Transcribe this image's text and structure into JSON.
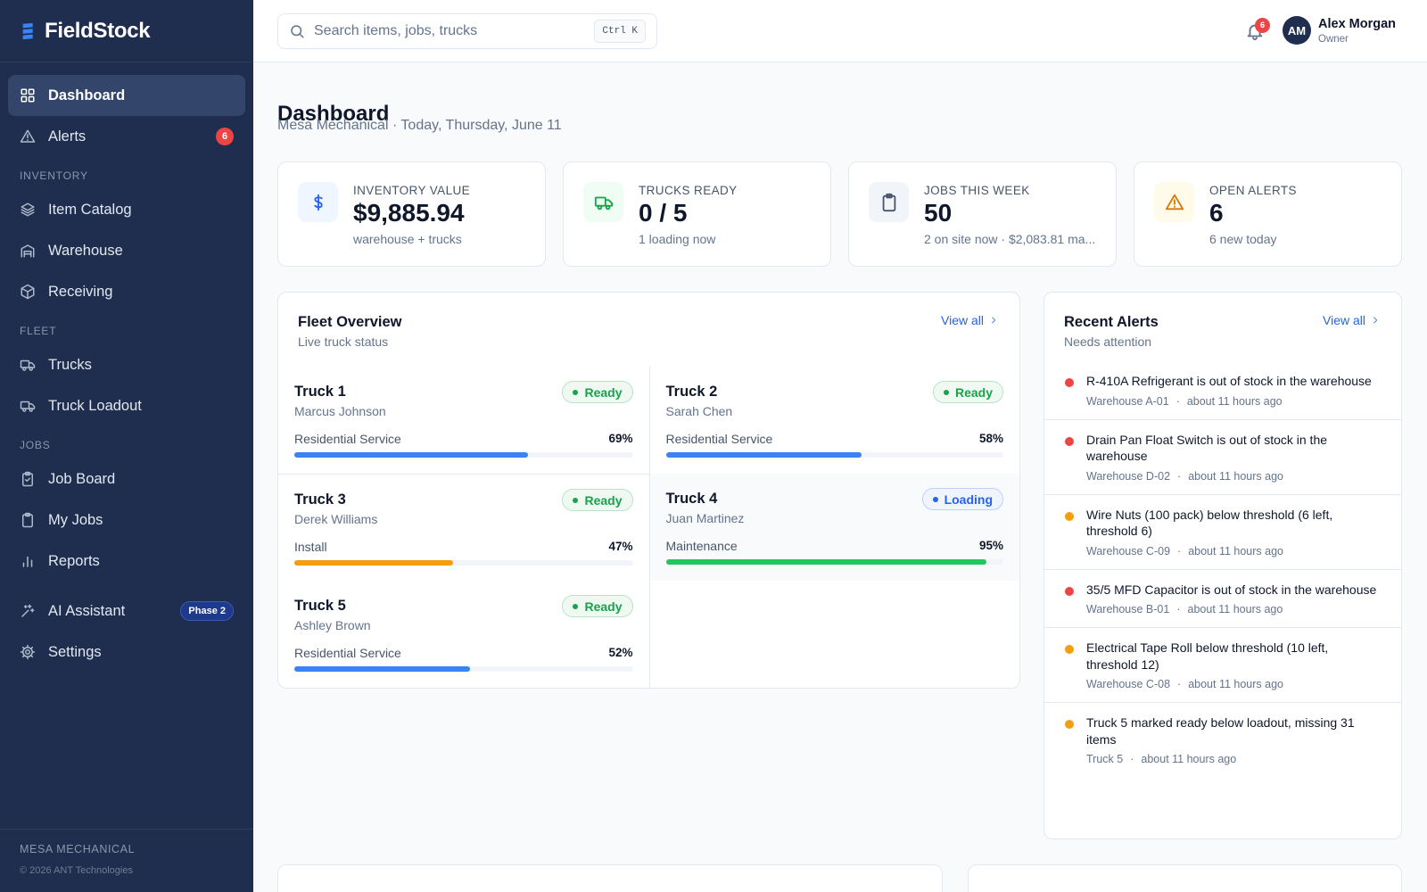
{
  "sidebar": {
    "brand": "FieldStock",
    "groups": [
      {
        "items": [
          {
            "label": "Dashboard",
            "active": true
          },
          {
            "label": "Alerts",
            "badge": 6
          }
        ]
      },
      {
        "heading": "INVENTORY",
        "items": [
          {
            "label": "Item Catalog"
          },
          {
            "label": "Warehouse"
          },
          {
            "label": "Receiving"
          }
        ]
      },
      {
        "heading": "FLEET",
        "items": [
          {
            "label": "Trucks"
          },
          {
            "label": "Truck Loadout"
          }
        ]
      },
      {
        "heading": "JOBS",
        "items": [
          {
            "label": "Job Board"
          },
          {
            "label": "My Jobs"
          },
          {
            "label": "Reports"
          }
        ]
      },
      {
        "items": [
          {
            "label": "AI Assistant",
            "badge": "Phase 2"
          },
          {
            "label": "Settings"
          }
        ]
      }
    ],
    "footer": {
      "org": "MESA MECHANICAL",
      "copyright": "© 2026 ANT Technologies"
    }
  },
  "topbar": {
    "search_placeholder": "Search items, jobs, trucks",
    "shortcut": "Ctrl K",
    "notifications": 6,
    "user": {
      "initials": "AM",
      "name": "Alex Morgan",
      "role": "Owner"
    }
  },
  "page": {
    "title": "Dashboard",
    "subtitle": "Mesa Mechanical · Today, Thursday, June 11"
  },
  "stats": [
    {
      "label": "INVENTORY VALUE",
      "value": "$9,885.94",
      "note": "warehouse + trucks"
    },
    {
      "label": "TRUCKS READY",
      "value": "0 / 5",
      "note": "1 loading now"
    },
    {
      "label": "JOBS THIS WEEK",
      "value": 50,
      "note": "2 on site now · $2,083.81 ma..."
    },
    {
      "label": "OPEN ALERTS",
      "value": 6,
      "note": "6 new today"
    }
  ],
  "fleet": {
    "title": "Fleet Overview",
    "subtitle": "Live truck status",
    "view_all": "View all",
    "trucks": [
      {
        "name": "Truck 1",
        "driver": "Marcus Johnson",
        "status": "Ready",
        "status_color": "#16a34a",
        "job": "Residential Service",
        "progress": {
          "value": 69,
          "label": "69%"
        },
        "bar_color": "#3b82f6"
      },
      {
        "name": "Truck 2",
        "driver": "Sarah Chen",
        "status": "Ready",
        "status_color": "#16a34a",
        "job": "Residential Service",
        "progress": {
          "value": 58,
          "label": "58%"
        },
        "bar_color": "#3b82f6"
      },
      {
        "name": "Truck 3",
        "driver": "Derek Williams",
        "status": "Ready",
        "status_color": "#16a34a",
        "job": "Install",
        "progress": {
          "value": 47,
          "label": "47%"
        },
        "bar_color": "#f59e0b"
      },
      {
        "name": "Truck 4",
        "driver": "Juan Martinez",
        "status": "Loading",
        "status_color": "#2563eb",
        "job": "Maintenance",
        "progress": {
          "value": 95,
          "label": "95%"
        },
        "bar_color": "#22c55e"
      },
      {
        "name": "Truck 5",
        "driver": "Ashley Brown",
        "status": "Ready",
        "status_color": "#16a34a",
        "job": "Residential Service",
        "progress": {
          "value": 52,
          "label": "52%"
        },
        "bar_color": "#3b82f6"
      }
    ]
  },
  "alerts": {
    "title": "Recent Alerts",
    "subtitle": "Needs attention",
    "view_all": "View all",
    "items": [
      {
        "text": "R-410A Refrigerant is out of stock in the warehouse",
        "location": "Warehouse A-01",
        "time": "about 11 hours ago",
        "color": "#ef4444"
      },
      {
        "text": "Drain Pan Float Switch is out of stock in the warehouse",
        "location": "Warehouse D-02",
        "time": "about 11 hours ago",
        "color": "#ef4444"
      },
      {
        "text": "Wire Nuts (100 pack) below threshold (6 left, threshold 6)",
        "location": "Warehouse C-09",
        "time": "about 11 hours ago",
        "color": "#f59e0b"
      },
      {
        "text": "35/5 MFD Capacitor is out of stock in the warehouse",
        "location": "Warehouse B-01",
        "time": "about 11 hours ago",
        "color": "#ef4444"
      },
      {
        "text": "Electrical Tape Roll below threshold (10 left, threshold 12)",
        "location": "Warehouse C-08",
        "time": "about 11 hours ago",
        "color": "#f59e0b"
      },
      {
        "text": "Truck 5 marked ready below loadout, missing 31 items",
        "location": "Truck 5",
        "time": "about 11 hours ago",
        "color": "#f59e0b"
      }
    ]
  }
}
